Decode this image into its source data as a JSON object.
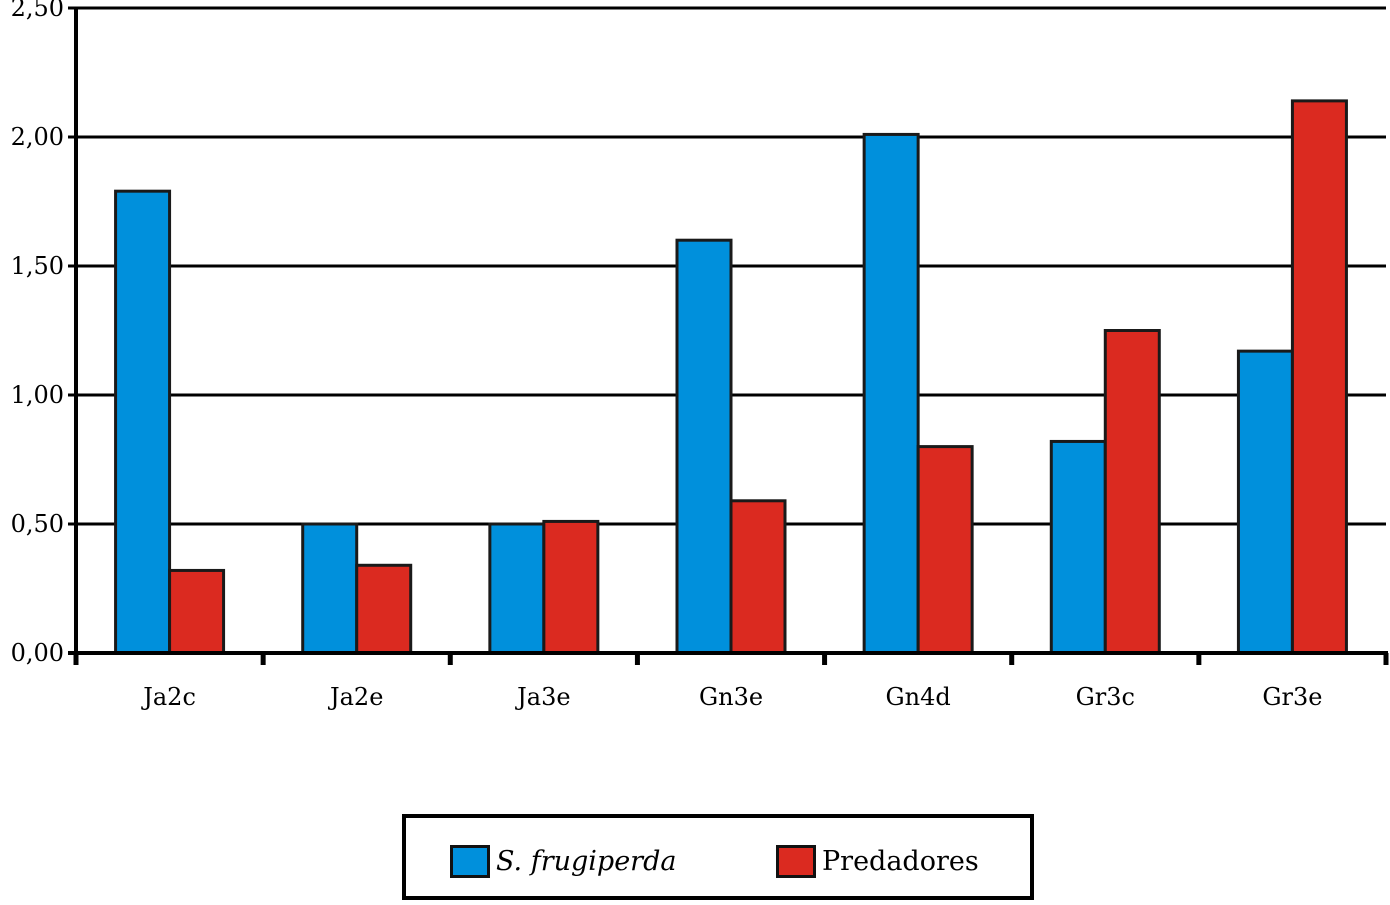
{
  "chart_data": {
    "type": "bar",
    "categories": [
      "Ja2c",
      "Ja2e",
      "Ja3e",
      "Gn3e",
      "Gn4d",
      "Gr3c",
      "Gr3e"
    ],
    "series": [
      {
        "name": "S. frugiperda",
        "color": "#0090dc",
        "values": [
          1.79,
          0.5,
          0.5,
          1.6,
          2.01,
          0.82,
          1.17
        ]
      },
      {
        "name": "Predadores",
        "color": "#db2a20",
        "values": [
          0.32,
          0.34,
          0.51,
          0.59,
          0.8,
          1.25,
          2.14
        ]
      }
    ],
    "yticks": [
      "0,00",
      "0,50",
      "1,00",
      "1,50",
      "2,00",
      "2,50"
    ],
    "ylim": [
      0,
      2.5
    ],
    "grid": true,
    "legend_position": "bottom",
    "title": "",
    "xlabel": "",
    "ylabel": ""
  }
}
